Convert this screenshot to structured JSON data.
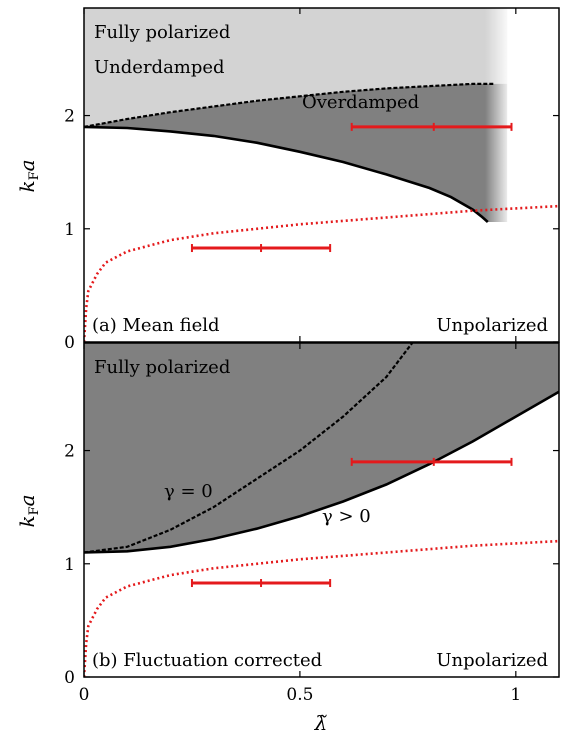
{
  "chart_data": [
    {
      "type": "area",
      "panel_label": "(a) Mean field",
      "ylabel": "k_F a",
      "xlim": [
        0,
        1.1
      ],
      "ylim": [
        0,
        2.95
      ],
      "yticks": [
        "0",
        "1",
        "2"
      ],
      "regions": [
        {
          "name": "Fully polarized",
          "color": "#d3d3d3"
        },
        {
          "name": "Underdamped",
          "color": "#d3d3d3"
        },
        {
          "name": "Overdamped",
          "color": "#808080"
        },
        {
          "name": "Unpolarized",
          "color": "#ffffff"
        }
      ],
      "boundaries": {
        "upper_dashed": {
          "x": [
            0,
            0.1,
            0.2,
            0.3,
            0.4,
            0.5,
            0.6,
            0.7,
            0.8,
            0.9,
            0.95
          ],
          "y": [
            1.9,
            1.97,
            2.03,
            2.08,
            2.13,
            2.17,
            2.21,
            2.24,
            2.26,
            2.28,
            2.28
          ]
        },
        "lower_solid": {
          "x": [
            0,
            0.1,
            0.2,
            0.3,
            0.4,
            0.5,
            0.6,
            0.7,
            0.8,
            0.85,
            0.9,
            0.92,
            0.935
          ],
          "y": [
            1.9,
            1.89,
            1.86,
            1.82,
            1.76,
            1.68,
            1.59,
            1.48,
            1.36,
            1.28,
            1.17,
            1.11,
            1.06
          ]
        },
        "red_dotted": {
          "x": [
            0,
            0.005,
            0.01,
            0.03,
            0.05,
            0.1,
            0.2,
            0.3,
            0.4,
            0.5,
            0.6,
            0.7,
            0.8,
            0.9,
            1.0,
            1.1
          ],
          "y": [
            0,
            0.3,
            0.45,
            0.6,
            0.7,
            0.8,
            0.9,
            0.96,
            1.0,
            1.04,
            1.07,
            1.1,
            1.13,
            1.16,
            1.18,
            1.2
          ]
        }
      },
      "error_bars": [
        {
          "x": 0.41,
          "y": 0.83,
          "xmin": 0.25,
          "xmax": 0.57
        },
        {
          "x": 0.81,
          "y": 1.9,
          "xmin": 0.62,
          "xmax": 0.99
        }
      ],
      "color_gradient_edge_x": 0.98
    },
    {
      "type": "area",
      "panel_label": "(b) Fluctuation corrected",
      "xlabel": "λ̃",
      "ylabel": "k_F a",
      "xlim": [
        0,
        1.1
      ],
      "ylim": [
        0,
        2.95
      ],
      "xticks": [
        "0",
        "0.5",
        "1"
      ],
      "yticks": [
        "0",
        "1",
        "2"
      ],
      "regions": [
        {
          "name": "Fully polarized",
          "color": "#808080"
        },
        {
          "name": "Unpolarized",
          "color": "#ffffff"
        }
      ],
      "annotations": [
        "γ = 0",
        "γ > 0"
      ],
      "boundaries": {
        "gamma_zero_dashed": {
          "x": [
            0,
            0.1,
            0.2,
            0.3,
            0.4,
            0.5,
            0.6,
            0.7,
            0.76
          ],
          "y": [
            1.1,
            1.15,
            1.3,
            1.5,
            1.75,
            2.0,
            2.3,
            2.65,
            2.95
          ]
        },
        "gamma_pos_solid": {
          "x": [
            0,
            0.1,
            0.2,
            0.3,
            0.4,
            0.5,
            0.6,
            0.7,
            0.8,
            0.9,
            1.0,
            1.1
          ],
          "y": [
            1.1,
            1.11,
            1.15,
            1.22,
            1.31,
            1.42,
            1.55,
            1.7,
            1.88,
            2.08,
            2.3,
            2.52
          ]
        },
        "red_dotted": {
          "x": [
            0,
            0.005,
            0.01,
            0.03,
            0.05,
            0.1,
            0.2,
            0.3,
            0.4,
            0.5,
            0.6,
            0.7,
            0.8,
            0.9,
            1.0,
            1.1
          ],
          "y": [
            0,
            0.3,
            0.45,
            0.6,
            0.7,
            0.8,
            0.9,
            0.96,
            1.0,
            1.04,
            1.07,
            1.1,
            1.13,
            1.16,
            1.18,
            1.2
          ]
        }
      },
      "error_bars": [
        {
          "x": 0.41,
          "y": 0.83,
          "xmin": 0.25,
          "xmax": 0.57
        },
        {
          "x": 0.81,
          "y": 1.9,
          "xmin": 0.62,
          "xmax": 0.99
        }
      ]
    }
  ],
  "colors": {
    "light_gray": "#d3d3d3",
    "dark_gray": "#808080",
    "error_bar": "#e41a1c",
    "red_curve": "#e41a1c"
  }
}
